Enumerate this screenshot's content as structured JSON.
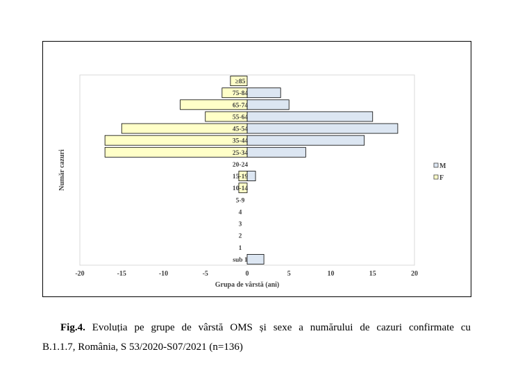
{
  "chart_data": {
    "type": "bar",
    "orientation": "horizontal-population-pyramid",
    "categories": [
      "sub 1",
      "1",
      "2",
      "3",
      "4",
      "5-9",
      "10-14",
      "15-19",
      "20-24",
      "25-34",
      "35-44",
      "45-54",
      "55-64",
      "65-74",
      "75-84",
      "≥85"
    ],
    "series": [
      {
        "name": "M",
        "color": "#dce6f2",
        "values": [
          2,
          0,
          0,
          0,
          0,
          0,
          0,
          1,
          0,
          7,
          14,
          18,
          15,
          5,
          4,
          0
        ]
      },
      {
        "name": "F",
        "color": "#ffffc8",
        "values": [
          0,
          0,
          0,
          0,
          0,
          0,
          -1,
          -1,
          0,
          -17,
          -17,
          -15,
          -5,
          -8,
          -3,
          -2
        ]
      }
    ],
    "xlim": [
      -20,
      20
    ],
    "xticks": [
      "-20",
      "-15",
      "-10",
      "-5",
      "0",
      "5",
      "10",
      "15",
      "20"
    ],
    "xlabel": "Grupa de vârstă (ani)",
    "ylabel": "Număr cazuri",
    "legend_position": "right",
    "grid": false
  },
  "caption": {
    "label": "Fig.4.",
    "text_line1": "Evoluția pe grupe de vârstă OMS și sexe a numărului de cazuri confirmate cu",
    "text_line2": "B.1.1.7, România, S 53/2020-S07/2021 (n=136)"
  }
}
